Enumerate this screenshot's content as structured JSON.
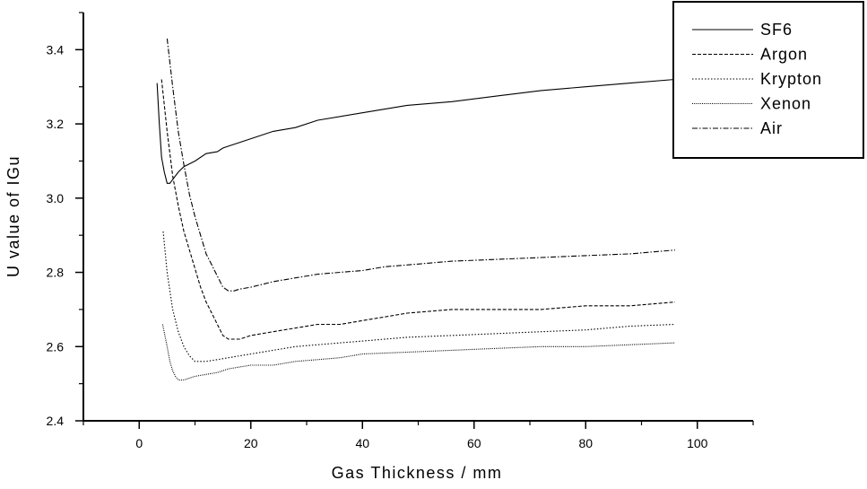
{
  "chart_data": {
    "type": "line",
    "title": "",
    "xlabel": "Gas Thickness / mm",
    "ylabel": "U value of IGu",
    "xlim": [
      -10,
      110
    ],
    "ylim": [
      2.4,
      3.5
    ],
    "x_ticks": [
      0,
      20,
      40,
      60,
      80,
      100
    ],
    "y_ticks": [
      2.4,
      2.6,
      2.8,
      3.0,
      3.2,
      3.4
    ],
    "x_tick_labels": [
      "0",
      "20",
      "40",
      "60",
      "80",
      "100"
    ],
    "y_tick_labels": [
      "2.4",
      "2.6",
      "2.8",
      "3.0",
      "3.2",
      "3.4"
    ],
    "grid": false,
    "legend_position": "top-right",
    "series": [
      {
        "name": "SF6",
        "dash": "solid",
        "x": [
          3.2,
          3.6,
          4,
          4.5,
          5,
          5.5,
          6,
          7,
          8,
          10,
          12,
          14,
          15,
          16,
          20,
          24,
          28,
          32,
          40,
          48,
          56,
          64,
          72,
          80,
          88,
          96
        ],
        "y": [
          3.31,
          3.2,
          3.11,
          3.07,
          3.04,
          3.04,
          3.05,
          3.07,
          3.085,
          3.1,
          3.12,
          3.125,
          3.135,
          3.14,
          3.16,
          3.18,
          3.19,
          3.21,
          3.23,
          3.25,
          3.26,
          3.275,
          3.29,
          3.3,
          3.31,
          3.32
        ]
      },
      {
        "name": "Argon",
        "dash": "dashed",
        "x": [
          4,
          5,
          6,
          7,
          8,
          9,
          10,
          11,
          12,
          13,
          14,
          15,
          16,
          18,
          20,
          24,
          28,
          32,
          36,
          40,
          44,
          48,
          56,
          64,
          72,
          80,
          88,
          96
        ],
        "y": [
          3.32,
          3.18,
          3.06,
          2.98,
          2.91,
          2.86,
          2.81,
          2.76,
          2.72,
          2.69,
          2.66,
          2.63,
          2.62,
          2.62,
          2.63,
          2.64,
          2.65,
          2.66,
          2.66,
          2.67,
          2.68,
          2.69,
          2.7,
          2.7,
          2.7,
          2.71,
          2.71,
          2.72
        ]
      },
      {
        "name": "Krypton",
        "dash": "dotted",
        "x": [
          4.3,
          5,
          6,
          7,
          8,
          9,
          10,
          12,
          14,
          16,
          20,
          24,
          28,
          32,
          36,
          40,
          48,
          56,
          64,
          72,
          80,
          88,
          96
        ],
        "y": [
          2.91,
          2.8,
          2.7,
          2.64,
          2.6,
          2.575,
          2.56,
          2.56,
          2.565,
          2.57,
          2.58,
          2.59,
          2.6,
          2.605,
          2.61,
          2.615,
          2.625,
          2.63,
          2.635,
          2.64,
          2.645,
          2.655,
          2.66
        ]
      },
      {
        "name": "Xenon",
        "dash": "fine-dotted",
        "x": [
          4.2,
          5,
          5.5,
          6,
          6.5,
          7,
          8,
          9,
          10,
          12,
          14,
          16,
          18,
          20,
          24,
          28,
          32,
          36,
          40,
          48,
          56,
          64,
          72,
          80,
          88,
          96
        ],
        "y": [
          2.66,
          2.6,
          2.56,
          2.535,
          2.52,
          2.51,
          2.51,
          2.515,
          2.52,
          2.525,
          2.53,
          2.54,
          2.545,
          2.55,
          2.55,
          2.56,
          2.565,
          2.57,
          2.58,
          2.585,
          2.59,
          2.595,
          2.6,
          2.6,
          2.605,
          2.61
        ]
      },
      {
        "name": "Air",
        "dash": "dash-dot",
        "x": [
          5,
          6,
          7,
          8,
          9,
          10,
          11,
          12,
          13,
          14,
          15,
          16,
          17,
          18,
          20,
          24,
          28,
          32,
          36,
          40,
          44,
          48,
          56,
          64,
          72,
          80,
          88,
          96
        ],
        "y": [
          3.43,
          3.3,
          3.18,
          3.09,
          3.01,
          2.95,
          2.9,
          2.85,
          2.82,
          2.79,
          2.76,
          2.75,
          2.75,
          2.755,
          2.76,
          2.775,
          2.785,
          2.795,
          2.8,
          2.805,
          2.815,
          2.82,
          2.83,
          2.835,
          2.84,
          2.845,
          2.85,
          2.86
        ]
      }
    ]
  },
  "colors": {
    "line": "#000000",
    "background": "#ffffff"
  }
}
